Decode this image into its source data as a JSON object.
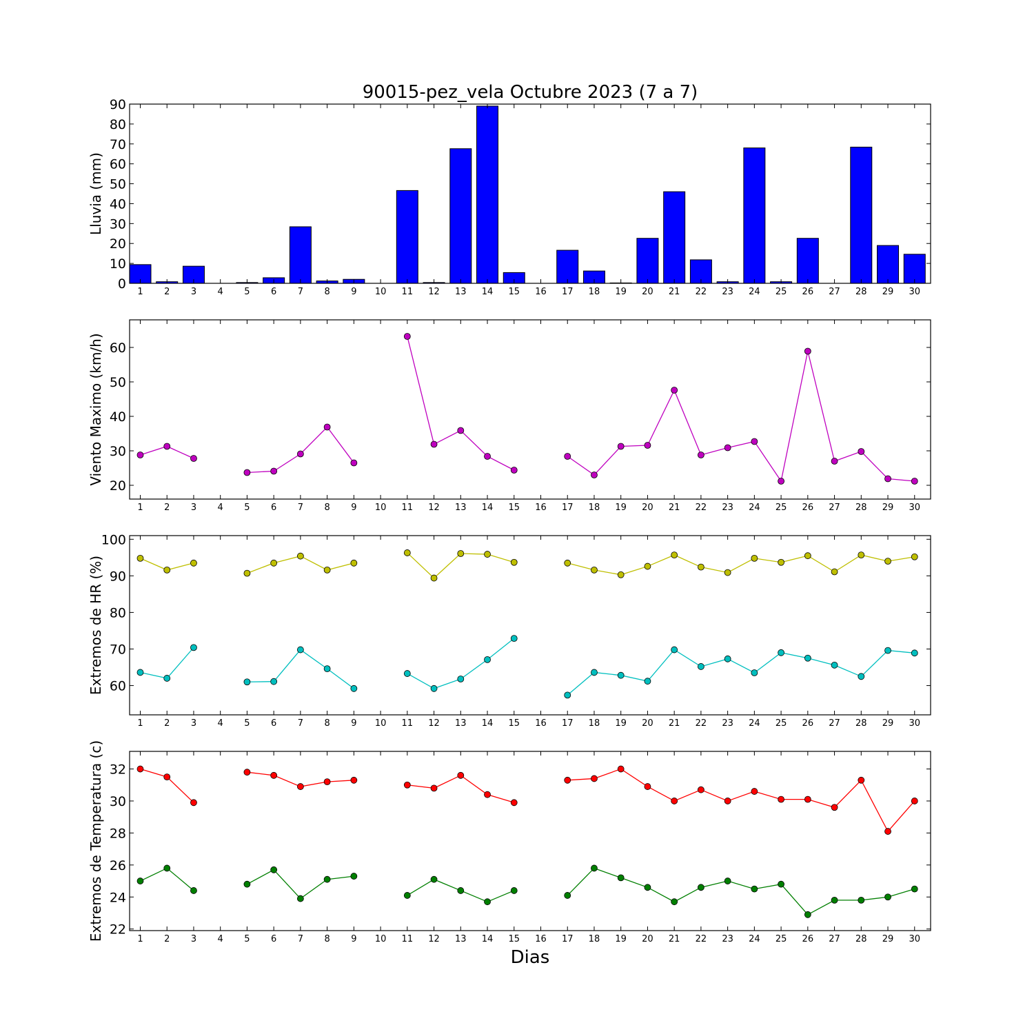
{
  "figure": {
    "title": "90015-pez_vela Octubre 2023  (7 a 7)",
    "xlabel": "Dias"
  },
  "chart_data": [
    {
      "type": "bar",
      "ylabel": "Lluvia (mm)",
      "ylim": [
        0,
        90
      ],
      "yticks": [
        0,
        10,
        20,
        30,
        40,
        50,
        60,
        70,
        80,
        90
      ],
      "xlim": [
        0.6,
        30.6
      ],
      "categories": [
        1,
        2,
        3,
        4,
        5,
        6,
        7,
        8,
        9,
        10,
        11,
        12,
        13,
        14,
        15,
        16,
        17,
        18,
        19,
        20,
        21,
        22,
        23,
        24,
        25,
        26,
        27,
        28,
        29,
        30
      ],
      "series": [
        {
          "values": [
            9.4,
            0.8,
            8.6,
            0,
            0.4,
            2.8,
            28.4,
            1.2,
            2.0,
            0,
            46.6,
            0.4,
            67.6,
            89.0,
            5.4,
            0,
            16.6,
            6.2,
            0.2,
            22.6,
            46.0,
            11.8,
            0.8,
            68.0,
            0.8,
            22.6,
            0,
            68.4,
            19.0,
            14.6
          ],
          "color": "#0000ff"
        }
      ],
      "grid": false
    },
    {
      "type": "line",
      "ylabel": "Viento Maximo (km/h)",
      "ylim": [
        16,
        68
      ],
      "yticks": [
        20,
        30,
        40,
        50,
        60
      ],
      "xlim": [
        0.6,
        30.6
      ],
      "x": [
        1,
        2,
        3,
        4,
        5,
        6,
        7,
        8,
        9,
        10,
        11,
        12,
        13,
        14,
        15,
        16,
        17,
        18,
        19,
        20,
        21,
        22,
        23,
        24,
        25,
        26,
        27,
        28,
        29,
        30
      ],
      "series": [
        {
          "values": [
            28.8,
            31.3,
            27.8,
            null,
            23.7,
            24.1,
            29.1,
            36.9,
            26.5,
            null,
            63.2,
            31.9,
            35.9,
            28.4,
            24.4,
            null,
            28.4,
            23.0,
            31.3,
            31.6,
            47.6,
            28.8,
            30.9,
            32.7,
            21.2,
            58.9,
            27.0,
            29.8,
            21.9,
            21.2
          ],
          "color": "#bf00bf"
        }
      ],
      "grid": false
    },
    {
      "type": "line",
      "ylabel": "Extremos de HR (%)",
      "ylim": [
        52,
        101
      ],
      "yticks": [
        60,
        70,
        80,
        90,
        100
      ],
      "xlim": [
        0.6,
        30.6
      ],
      "x": [
        1,
        2,
        3,
        4,
        5,
        6,
        7,
        8,
        9,
        10,
        11,
        12,
        13,
        14,
        15,
        16,
        17,
        18,
        19,
        20,
        21,
        22,
        23,
        24,
        25,
        26,
        27,
        28,
        29,
        30
      ],
      "series": [
        {
          "values": [
            94.8,
            91.6,
            93.5,
            null,
            90.7,
            93.5,
            95.4,
            91.6,
            93.5,
            null,
            96.3,
            89.4,
            96.1,
            95.9,
            93.7,
            null,
            93.5,
            91.6,
            90.3,
            92.6,
            95.7,
            92.4,
            90.9,
            94.8,
            93.7,
            95.5,
            91.1,
            95.7,
            94.0,
            95.2
          ],
          "color": "#bfbf00"
        },
        {
          "values": [
            63.6,
            62.0,
            70.4,
            null,
            61.0,
            61.1,
            69.8,
            64.6,
            59.2,
            null,
            63.3,
            59.2,
            61.8,
            67.1,
            72.9,
            null,
            57.4,
            63.6,
            62.8,
            61.2,
            69.8,
            65.2,
            67.3,
            63.5,
            69.0,
            67.5,
            65.6,
            62.5,
            69.6,
            68.9
          ],
          "color": "#00bfbf"
        }
      ],
      "grid": false
    },
    {
      "type": "line",
      "ylabel": "Extremos de Temperatura (c)",
      "ylim": [
        21.9,
        33.1
      ],
      "yticks": [
        22,
        24,
        26,
        28,
        30,
        32
      ],
      "xlim": [
        0.6,
        30.6
      ],
      "x": [
        1,
        2,
        3,
        4,
        5,
        6,
        7,
        8,
        9,
        10,
        11,
        12,
        13,
        14,
        15,
        16,
        17,
        18,
        19,
        20,
        21,
        22,
        23,
        24,
        25,
        26,
        27,
        28,
        29,
        30
      ],
      "series": [
        {
          "values": [
            32.0,
            31.5,
            29.9,
            null,
            31.8,
            31.6,
            30.9,
            31.2,
            31.3,
            null,
            31.0,
            30.8,
            31.6,
            30.4,
            29.9,
            null,
            31.3,
            31.4,
            32.0,
            30.9,
            30.0,
            30.7,
            30.0,
            30.6,
            30.1,
            30.1,
            29.6,
            31.3,
            28.1,
            30.0
          ],
          "color": "#ff0000"
        },
        {
          "values": [
            25.0,
            25.8,
            24.4,
            null,
            24.8,
            25.7,
            23.9,
            25.1,
            25.3,
            null,
            24.1,
            25.1,
            24.4,
            23.7,
            24.4,
            null,
            24.1,
            25.8,
            25.2,
            24.6,
            23.7,
            24.6,
            25.0,
            24.5,
            24.8,
            22.9,
            23.8,
            23.8,
            24.0,
            24.5
          ],
          "color": "#007f00"
        }
      ],
      "grid": false
    }
  ]
}
